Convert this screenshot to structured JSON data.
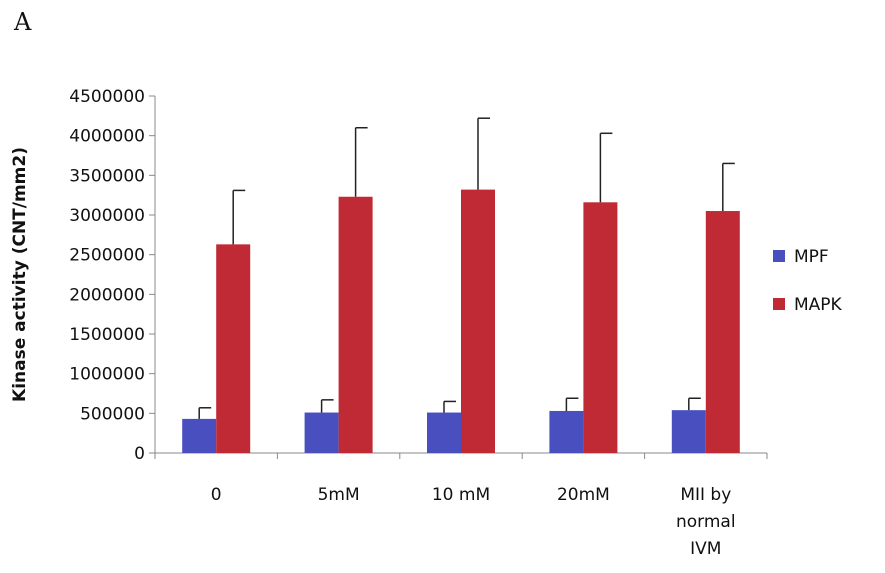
{
  "panel_label": "A",
  "chart_data": {
    "type": "bar",
    "title": "",
    "xlabel": "",
    "ylabel": "Kinase activity (CNT/mm2)",
    "ylim": [
      0,
      4500000
    ],
    "yticks": [
      "0",
      "500000",
      "1000000",
      "1500000",
      "2000000",
      "2500000",
      "3000000",
      "3500000",
      "4000000",
      "4500000"
    ],
    "categories": [
      [
        "0"
      ],
      [
        "5mM"
      ],
      [
        "10 mM"
      ],
      [
        "20mM"
      ],
      [
        "MII by",
        "normal",
        "IVM"
      ]
    ],
    "series": [
      {
        "name": "MPF",
        "color": "#4a4fc0",
        "values": [
          430000,
          510000,
          510000,
          530000,
          540000
        ],
        "errors": [
          140000,
          160000,
          140000,
          160000,
          150000
        ]
      },
      {
        "name": "MAPK",
        "color": "#bf2a35",
        "values": [
          2630000,
          3230000,
          3320000,
          3160000,
          3050000
        ],
        "errors": [
          680000,
          870000,
          900000,
          870000,
          600000
        ]
      }
    ],
    "legend_position": "right",
    "grid": false
  }
}
